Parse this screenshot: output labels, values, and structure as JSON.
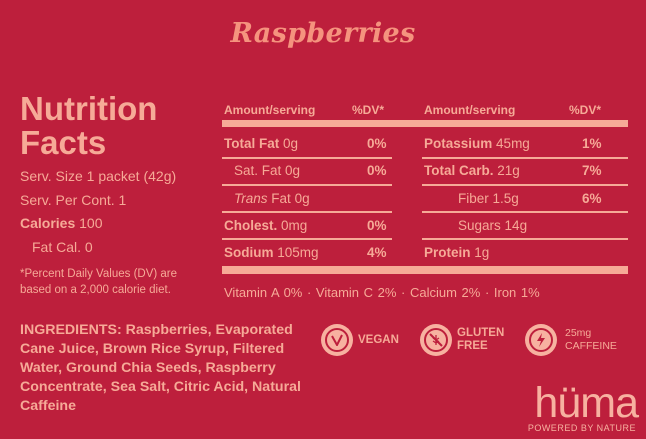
{
  "title": "Raspberries",
  "nutrition_facts": {
    "heading_line1": "Nutrition",
    "heading_line2": "Facts",
    "serving_size": "Serv. Size 1 packet (42g)",
    "servings_per_container": "Serv. Per Cont. 1",
    "calories_label": "Calories",
    "calories_value": "100",
    "fat_calories": "Fat Cal. 0",
    "footnote_line1": "*Percent Daily Values (DV) are",
    "footnote_line2": "based on a 2,000 calorie diet."
  },
  "table": {
    "headers": [
      "Amount/serving",
      "%DV*",
      "Amount/serving",
      "%DV*"
    ],
    "left_rows": [
      {
        "label": "Total Fat",
        "amount": "0g",
        "dv": "0%"
      },
      {
        "label": "Sat. Fat",
        "amount": "0g",
        "dv": "0%"
      },
      {
        "label": "Trans",
        "suffix": "Fat",
        "amount": "0g",
        "dv": ""
      },
      {
        "label": "Cholest.",
        "amount": "0mg",
        "dv": "0%"
      },
      {
        "label": "Sodium",
        "amount": "105mg",
        "dv": "4%"
      }
    ],
    "right_rows": [
      {
        "label": "Potassium",
        "amount": "45mg",
        "dv": "1%"
      },
      {
        "label": "Total Carb.",
        "amount": "21g",
        "dv": "7%"
      },
      {
        "label": "Fiber",
        "amount": "1.5g",
        "dv": "6%"
      },
      {
        "label": "Sugars",
        "amount": "14g",
        "dv": ""
      },
      {
        "label": "Protein",
        "amount": "1g",
        "dv": ""
      }
    ],
    "vitamins": "Vitamin A 0%  ·  Vitamin C 2%  ·  Calcium 2%  ·  Iron 1%"
  },
  "ingredients": {
    "label": "INGREDIENTS:",
    "text": "Raspberries, Evaporated Cane Juice, Brown Rice Syrup, Filtered Water, Ground Chia Seeds, Raspberry Concentrate, Sea Salt, Citric Acid, Natural Caffeine"
  },
  "badges": [
    {
      "icon": "vegan-leaf-icon",
      "line1": "VEGAN",
      "line2": ""
    },
    {
      "icon": "no-gluten-icon",
      "line1": "GLUTEN",
      "line2": "FREE"
    },
    {
      "icon": "lightning-icon",
      "line1": "25mg",
      "line2": "CAFFEINE"
    }
  ],
  "brand": {
    "name": "hüma",
    "tagline": "POWERED BY NATURE"
  },
  "colors": {
    "background": "#bd1f3c",
    "text": "#f6aa97",
    "title": "#f5937e"
  }
}
